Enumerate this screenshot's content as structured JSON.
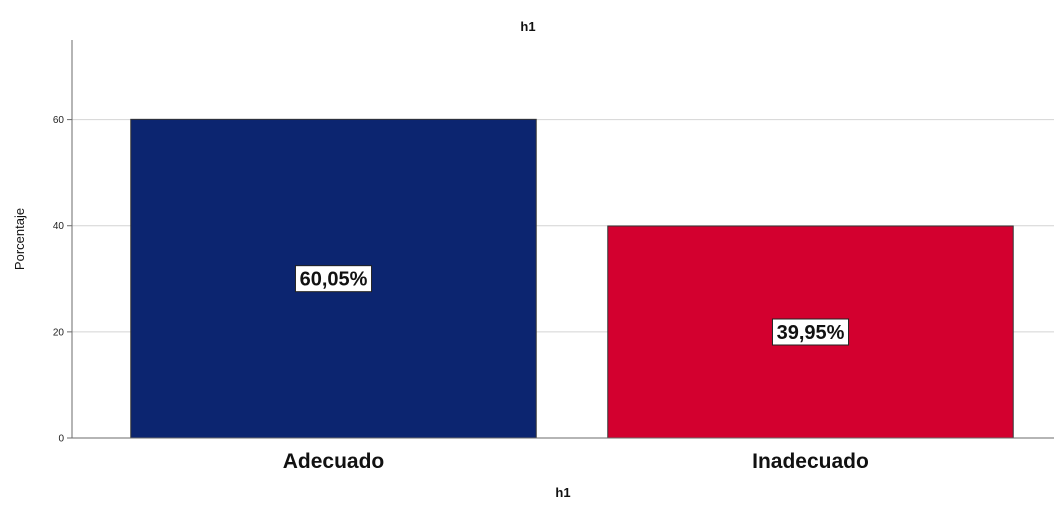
{
  "chart_data": {
    "type": "bar",
    "title": "h1",
    "xlabel": "h1",
    "ylabel": "Porcentaje",
    "categories": [
      "Adecuado",
      "Inadecuado"
    ],
    "values": [
      60.05,
      39.95
    ],
    "data_labels": [
      "60,05%",
      "39,95%"
    ],
    "colors": [
      "#0c2570",
      "#d3002f"
    ],
    "ylim": [
      0,
      75
    ],
    "yticks": [
      0,
      20,
      40,
      60
    ],
    "grid": true,
    "legend": "none"
  }
}
